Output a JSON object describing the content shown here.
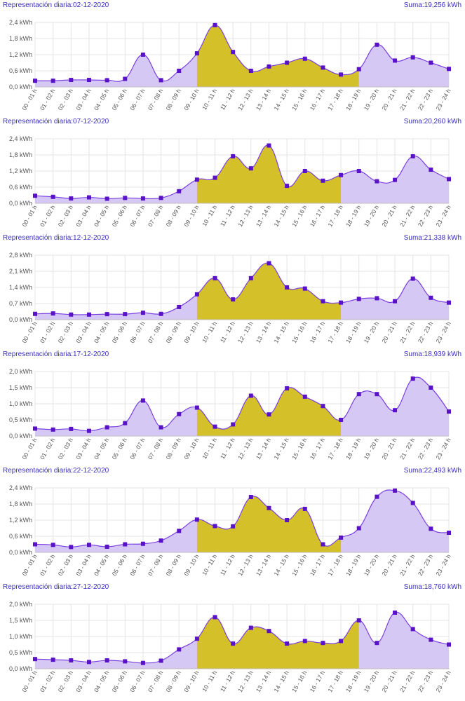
{
  "categories": [
    "00 - 01 h",
    "01 - 02 h",
    "02 - 03 h",
    "03 - 04 h",
    "04 - 05 h",
    "05 - 06 h",
    "06 - 07 h",
    "07 - 08 h",
    "08 - 09 h",
    "09 - 10 h",
    "10 - 11 h",
    "11 - 12 h",
    "12 - 13 h",
    "13 - 14 h",
    "14 - 15 h",
    "15 - 16 h",
    "16 - 17 h",
    "17 - 18 h",
    "18 - 19 h",
    "19 - 20 h",
    "20 - 21 h",
    "21 - 22 h",
    "22 - 23 h",
    "23 - 24 h"
  ],
  "colors": {
    "offpeak_fill": "#d5c8f5",
    "peak_fill": "#d4c12a",
    "line": "#7b3fe0",
    "marker": "#5a12c8",
    "grid": "#e4e4e4",
    "title": "#3a2fc4"
  },
  "chart_data": [
    {
      "type": "area",
      "title": "Representación diaria:02-12-2020",
      "sum": "Suma:19,256 kWh",
      "ylim": [
        0,
        2.4
      ],
      "yticks": [
        "0,0 kWh",
        "0,6 kWh",
        "1,2 kWh",
        "1,8 kWh",
        "2,4 kWh"
      ],
      "peak_range": [
        9,
        18
      ],
      "values": [
        0.23,
        0.23,
        0.26,
        0.26,
        0.25,
        0.3,
        1.2,
        0.25,
        0.6,
        1.25,
        2.3,
        1.3,
        0.6,
        0.76,
        0.9,
        1.05,
        0.72,
        0.46,
        0.66,
        1.57,
        0.98,
        1.1,
        0.9,
        0.67
      ]
    },
    {
      "type": "area",
      "title": "Representación diaria:07-12-2020",
      "sum": "Suma:20,260 kWh",
      "ylim": [
        0,
        2.4
      ],
      "yticks": [
        "0,0 kWh",
        "0,6 kWh",
        "1,2 kWh",
        "1,8 kWh",
        "2,4 kWh"
      ],
      "peak_range": [
        9,
        17
      ],
      "values": [
        0.28,
        0.24,
        0.18,
        0.22,
        0.17,
        0.2,
        0.18,
        0.2,
        0.45,
        0.88,
        0.95,
        1.75,
        1.3,
        2.15,
        0.65,
        1.2,
        0.84,
        1.05,
        1.2,
        0.82,
        0.87,
        1.75,
        1.25,
        0.9
      ]
    },
    {
      "type": "area",
      "title": "Representación diaria:12-12-2020",
      "sum": "Suma:21,338 kWh",
      "ylim": [
        0,
        2.8
      ],
      "yticks": [
        "0,0 kWh",
        "0,7 kWh",
        "1,4 kWh",
        "2,1 kWh",
        "2,8 kWh"
      ],
      "peak_range": [
        9,
        17
      ],
      "values": [
        0.25,
        0.27,
        0.22,
        0.22,
        0.24,
        0.24,
        0.3,
        0.25,
        0.55,
        1.1,
        1.8,
        0.88,
        1.8,
        2.45,
        1.4,
        1.35,
        0.8,
        0.74,
        0.9,
        0.93,
        0.8,
        1.78,
        0.95,
        0.74
      ]
    },
    {
      "type": "area",
      "title": "Representación diaria:17-12-2020",
      "sum": "Suma:18,939 kWh",
      "ylim": [
        0,
        2.0
      ],
      "yticks": [
        "0,0 kWh",
        "0,5 kWh",
        "1,0 kWh",
        "1,5 kWh",
        "2,0 kWh"
      ],
      "peak_range": [
        9,
        17
      ],
      "values": [
        0.23,
        0.2,
        0.22,
        0.16,
        0.27,
        0.4,
        1.1,
        0.27,
        0.68,
        0.88,
        0.29,
        0.36,
        1.25,
        0.67,
        1.48,
        1.22,
        0.93,
        0.5,
        1.3,
        1.3,
        0.8,
        1.78,
        1.5,
        0.76
      ]
    },
    {
      "type": "area",
      "title": "Representación diaria:22-12-2020",
      "sum": "Suma:22,493 kWh",
      "ylim": [
        0,
        2.4
      ],
      "yticks": [
        "0,0 kWh",
        "0,6 kWh",
        "1,2 kWh",
        "1,8 kWh",
        "2,4 kWh"
      ],
      "peak_range": [
        9,
        17
      ],
      "values": [
        0.3,
        0.28,
        0.2,
        0.28,
        0.21,
        0.3,
        0.32,
        0.44,
        0.8,
        1.22,
        0.98,
        0.97,
        2.06,
        1.65,
        1.2,
        1.62,
        0.3,
        0.55,
        0.9,
        2.07,
        2.3,
        1.84,
        0.88,
        0.73
      ]
    },
    {
      "type": "area",
      "title": "Representación diaria:27-12-2020",
      "sum": "Suma:18,760 kWh",
      "ylim": [
        0,
        2.0
      ],
      "yticks": [
        "0,0 kWh",
        "0,5 kWh",
        "1,0 kWh",
        "1,5 kWh",
        "2,0 kWh"
      ],
      "peak_range": [
        9,
        18
      ],
      "values": [
        0.3,
        0.28,
        0.26,
        0.21,
        0.26,
        0.23,
        0.18,
        0.25,
        0.6,
        0.93,
        1.6,
        0.78,
        1.27,
        1.17,
        0.78,
        0.86,
        0.8,
        0.86,
        1.5,
        0.8,
        1.74,
        1.23,
        0.9,
        0.75
      ]
    }
  ]
}
